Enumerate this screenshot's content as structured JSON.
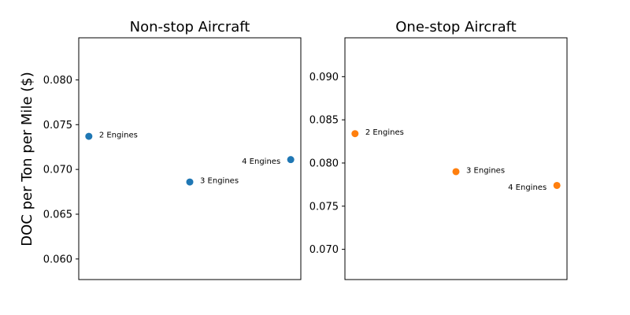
{
  "figure": {
    "ylabel": "DOC per Ton per Mile ($)"
  },
  "chart_data": [
    {
      "type": "scatter",
      "title": "Non-stop Aircraft",
      "xlabel": "",
      "ylabel": "DOC per Ton per Mile ($)",
      "x_ticks_visible": false,
      "ylim": [
        0.0577,
        0.0847
      ],
      "yticks": [
        0.06,
        0.065,
        0.07,
        0.075,
        0.08
      ],
      "ytick_labels": [
        "0.060",
        "0.065",
        "0.070",
        "0.075",
        "0.080"
      ],
      "color": "#1f77b4",
      "grid": false,
      "points": [
        {
          "label": "2 Engines",
          "engines": 2,
          "y": 0.0737
        },
        {
          "label": "3 Engines",
          "engines": 3,
          "y": 0.0686
        },
        {
          "label": "4 Engines",
          "engines": 4,
          "y": 0.0711
        }
      ]
    },
    {
      "type": "scatter",
      "title": "One-stop Aircraft",
      "xlabel": "",
      "ylabel": "",
      "x_ticks_visible": false,
      "ylim": [
        0.0665,
        0.0945
      ],
      "yticks": [
        0.07,
        0.075,
        0.08,
        0.085,
        0.09
      ],
      "ytick_labels": [
        "0.070",
        "0.075",
        "0.080",
        "0.085",
        "0.090"
      ],
      "color": "#ff7f0e",
      "grid": false,
      "points": [
        {
          "label": "2 Engines",
          "engines": 2,
          "y": 0.0834
        },
        {
          "label": "3 Engines",
          "engines": 3,
          "y": 0.079
        },
        {
          "label": "4 Engines",
          "engines": 4,
          "y": 0.0774
        }
      ]
    }
  ]
}
